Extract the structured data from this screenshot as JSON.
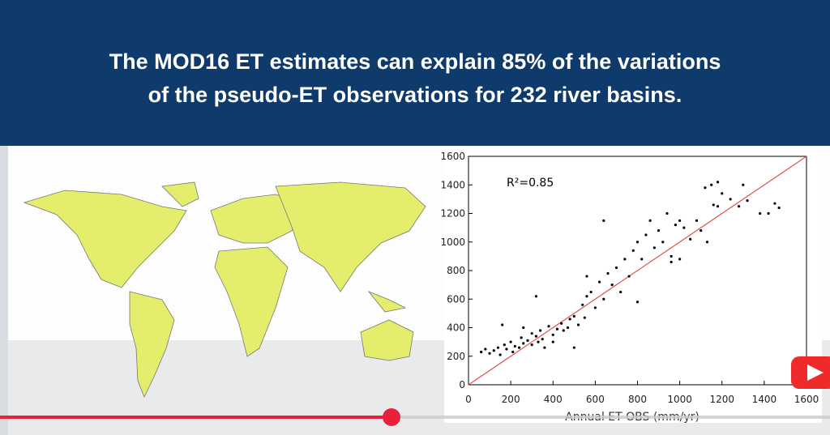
{
  "header": {
    "title_lines": [
      "The MOD16 ET estimates can explain 85% of the variations",
      "of the pseudo-ET observations for 232 river basins."
    ]
  },
  "chart_data": {
    "type": "scatter",
    "annotation": "R²=0.85",
    "x_label": "Annual ET OBS (mm/yr)",
    "xlim": [
      0,
      1600
    ],
    "ylim": [
      0,
      1600
    ],
    "xticks": [
      0,
      200,
      400,
      600,
      800,
      1000,
      1200,
      1400,
      1600
    ],
    "yticks": [
      0,
      200,
      400,
      600,
      800,
      1000,
      1200,
      1400,
      1600
    ],
    "series": [
      {
        "color": "#000000",
        "x": [
          60,
          80,
          100,
          120,
          140,
          150,
          170,
          180,
          200,
          210,
          220,
          240,
          250,
          260,
          280,
          300,
          300,
          320,
          330,
          340,
          350,
          360,
          380,
          400,
          400,
          420,
          440,
          450,
          470,
          480,
          500,
          520,
          540,
          550,
          560,
          580,
          600,
          620,
          640,
          660,
          680,
          700,
          720,
          740,
          760,
          780,
          800,
          820,
          840,
          860,
          880,
          900,
          920,
          940,
          960,
          980,
          1000,
          1020,
          1050,
          1080,
          1100,
          1130,
          1160,
          1180,
          1200,
          1240,
          1280,
          1300,
          1320,
          1380,
          1420,
          1450,
          1470,
          1000,
          960,
          800,
          500,
          160,
          260,
          320,
          560,
          640,
          1150,
          1180,
          1120
        ],
        "values": [
          230,
          250,
          220,
          240,
          260,
          210,
          280,
          250,
          300,
          230,
          270,
          260,
          330,
          290,
          310,
          280,
          360,
          340,
          300,
          380,
          320,
          260,
          410,
          350,
          300,
          390,
          430,
          380,
          400,
          460,
          480,
          420,
          560,
          470,
          620,
          650,
          540,
          720,
          600,
          780,
          700,
          820,
          650,
          880,
          760,
          940,
          1000,
          880,
          1050,
          1150,
          960,
          1080,
          1000,
          1200,
          900,
          1120,
          1150,
          1100,
          1020,
          1150,
          1080,
          1000,
          1260,
          1250,
          1340,
          1300,
          1250,
          1400,
          1290,
          1200,
          1200,
          1270,
          1240,
          880,
          860,
          580,
          260,
          420,
          400,
          620,
          760,
          1150,
          1400,
          1420,
          1380
        ]
      }
    ],
    "line": {
      "color": "#e05050"
    }
  }
}
